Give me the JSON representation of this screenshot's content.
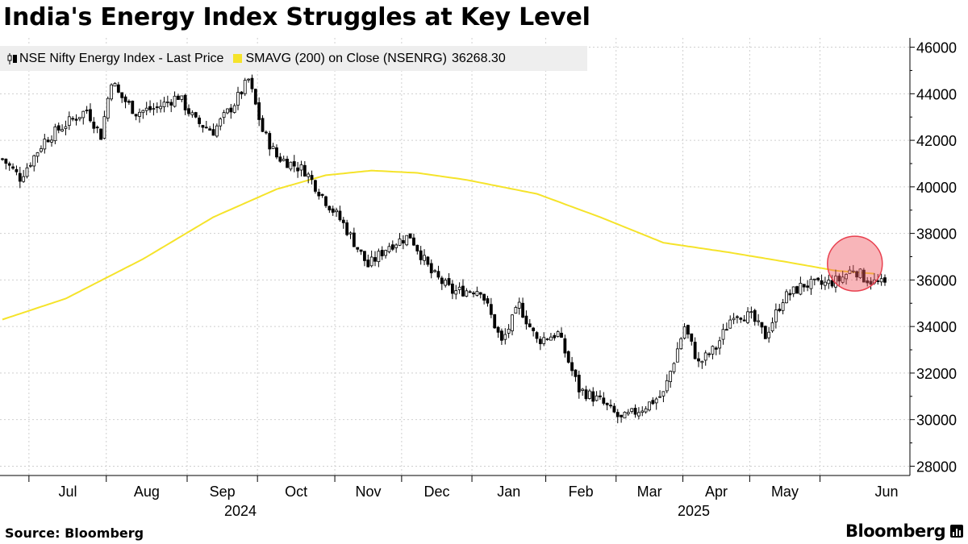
{
  "header": {
    "title": "India's Energy Index Struggles at Key Level"
  },
  "legend": {
    "series_label": "NSE Nifty Energy Index - Last Price",
    "sma_label": "SMAVG (200)  on Close (NSENRG)",
    "sma_value": "36268.30",
    "series_color": "#000000",
    "sma_color": "#f5e32a"
  },
  "footer": {
    "source": "Source: Bloomberg",
    "brand": "Bloomberg"
  },
  "chart_data": {
    "type": "candlestick",
    "title": "India's Energy Index Struggles at Key Level",
    "y_ticks": [
      28000,
      30000,
      32000,
      34000,
      36000,
      38000,
      40000,
      42000,
      44000,
      46000
    ],
    "ylim": [
      27600,
      46400
    ],
    "x_month_labels": [
      "Jul",
      "Aug",
      "Sep",
      "Oct",
      "Nov",
      "Dec",
      "Jan",
      "Feb",
      "Mar",
      "Apr",
      "May",
      "Jun"
    ],
    "x_year_labels": [
      {
        "label": "2024",
        "month_index": 3
      },
      {
        "label": "2025",
        "month_index": 9
      }
    ],
    "n_sessions": 252,
    "month_boundaries": [
      8,
      30,
      53,
      73,
      95,
      114,
      134,
      155,
      175,
      194,
      213,
      233
    ],
    "price_anchors": [
      [
        0,
        41200
      ],
      [
        5,
        40400
      ],
      [
        12,
        42000
      ],
      [
        18,
        42700
      ],
      [
        24,
        43300
      ],
      [
        28,
        42200
      ],
      [
        31,
        44600
      ],
      [
        33,
        44000
      ],
      [
        38,
        43200
      ],
      [
        44,
        43400
      ],
      [
        50,
        43900
      ],
      [
        55,
        42800
      ],
      [
        60,
        42400
      ],
      [
        66,
        43600
      ],
      [
        70,
        44600
      ],
      [
        74,
        42400
      ],
      [
        78,
        41300
      ],
      [
        86,
        40700
      ],
      [
        92,
        39400
      ],
      [
        97,
        38400
      ],
      [
        104,
        36600
      ],
      [
        110,
        37500
      ],
      [
        116,
        37900
      ],
      [
        122,
        36300
      ],
      [
        128,
        35500
      ],
      [
        136,
        35600
      ],
      [
        142,
        33300
      ],
      [
        147,
        34900
      ],
      [
        152,
        33400
      ],
      [
        158,
        33700
      ],
      [
        164,
        31300
      ],
      [
        170,
        30800
      ],
      [
        176,
        30000
      ],
      [
        182,
        30500
      ],
      [
        188,
        31100
      ],
      [
        194,
        34000
      ],
      [
        198,
        32400
      ],
      [
        203,
        33100
      ],
      [
        208,
        34600
      ],
      [
        213,
        34400
      ],
      [
        217,
        33600
      ],
      [
        222,
        35200
      ],
      [
        228,
        35800
      ],
      [
        233,
        35800
      ],
      [
        238,
        36000
      ],
      [
        242,
        36500
      ],
      [
        245,
        36100
      ],
      [
        248,
        35900
      ],
      [
        251,
        35800
      ]
    ],
    "sma_anchors": [
      [
        0,
        34300
      ],
      [
        18,
        35200
      ],
      [
        40,
        36900
      ],
      [
        60,
        38700
      ],
      [
        78,
        39900
      ],
      [
        92,
        40500
      ],
      [
        105,
        40700
      ],
      [
        118,
        40600
      ],
      [
        132,
        40300
      ],
      [
        152,
        39700
      ],
      [
        170,
        38700
      ],
      [
        188,
        37600
      ],
      [
        206,
        37200
      ],
      [
        222,
        36800
      ],
      [
        237,
        36400
      ],
      [
        248,
        36270
      ]
    ],
    "sma_last": 36268.3,
    "highlight": {
      "type": "circle",
      "center_session": 242,
      "center_value": 36700
    }
  }
}
